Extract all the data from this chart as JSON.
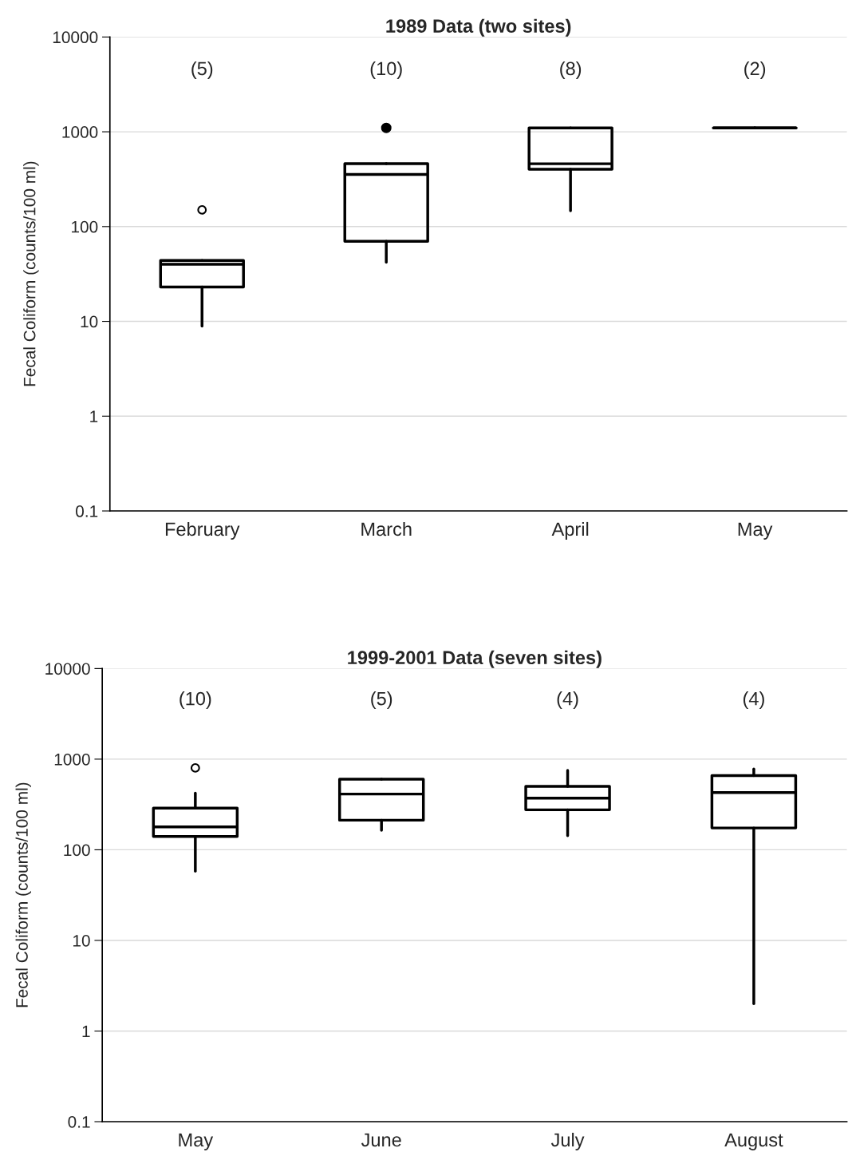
{
  "chart_data": [
    {
      "type": "box",
      "title": "1989 Data (two sites)",
      "ylabel": "Fecal Coliform (counts/100 ml)",
      "categories": [
        "February",
        "March",
        "April",
        "May"
      ],
      "log": true,
      "grid": "y",
      "ylim": [
        0.1,
        10000
      ],
      "yticks": [
        0.1,
        1,
        10,
        100,
        1000,
        10000
      ],
      "boxes": [
        {
          "low": 8.9,
          "q1": 23,
          "median": 40,
          "q3": 44,
          "high": 44,
          "outliers": [
            150
          ]
        },
        {
          "low": 42,
          "q1": 70,
          "median": 355,
          "q3": 462,
          "high": 462
        },
        {
          "low": 147,
          "q1": 402,
          "median": 460,
          "q3": 1100,
          "high": 1100
        },
        {
          "low": 1100,
          "q1": 1100,
          "median": 1100,
          "q3": 1100,
          "high": 1100
        }
      ],
      "series": [
        {
          "type": "scatter",
          "x": [
            "March"
          ],
          "values": [
            1100
          ],
          "color": "#000000",
          "marker": "circle"
        }
      ],
      "annotations": [
        "(5)",
        "(10)",
        "(8)",
        "(2)"
      ]
    },
    {
      "type": "box",
      "title": "1999-2001 Data (seven sites)",
      "ylabel": "Fecal Coliform (counts/100 ml)",
      "categories": [
        "May",
        "June",
        "July",
        "August"
      ],
      "log": true,
      "grid": "y",
      "ylim": [
        0.1,
        10000
      ],
      "yticks": [
        0.1,
        1,
        10,
        100,
        1000,
        10000
      ],
      "boxes": [
        {
          "low": 58,
          "q1": 140,
          "median": 179,
          "q3": 288,
          "high": 421,
          "outliers": [
            800
          ]
        },
        {
          "low": 164,
          "q1": 212,
          "median": 412,
          "q3": 601,
          "high": 601
        },
        {
          "low": 143,
          "q1": 276,
          "median": 372,
          "q3": 501,
          "high": 753
        },
        {
          "low": 2,
          "q1": 174,
          "median": 428,
          "q3": 658,
          "high": 780
        }
      ],
      "annotations": [
        "(10)",
        "(5)",
        "(4)",
        "(4)"
      ]
    }
  ]
}
